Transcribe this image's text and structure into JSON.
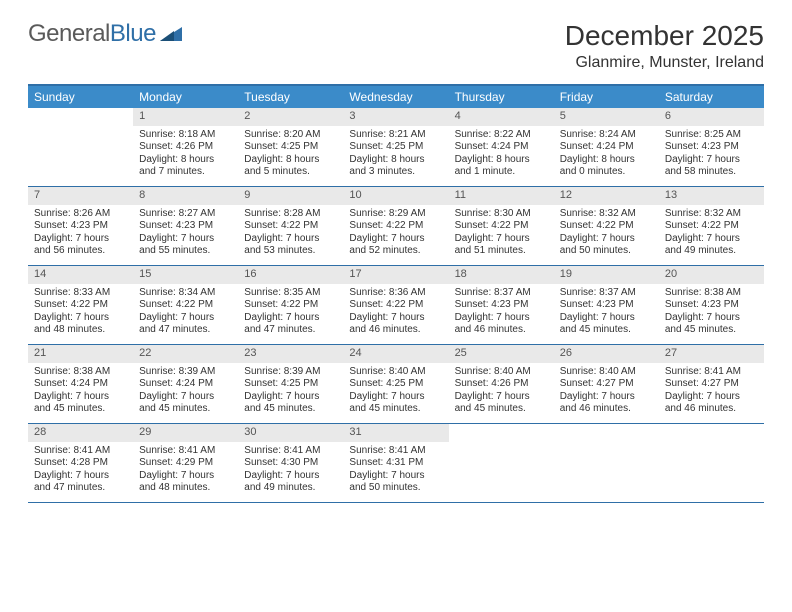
{
  "logo": {
    "part1": "General",
    "part2": "Blue"
  },
  "title": "December 2025",
  "location": "Glanmire, Munster, Ireland",
  "colors": {
    "header_bg": "#3b8bc9",
    "border": "#2f6fa7",
    "daynum_bg": "#e9e9e9",
    "text": "#333333"
  },
  "dayNames": [
    "Sunday",
    "Monday",
    "Tuesday",
    "Wednesday",
    "Thursday",
    "Friday",
    "Saturday"
  ],
  "weeks": [
    [
      {
        "n": "",
        "sr": "",
        "ss": "",
        "dl": ""
      },
      {
        "n": "1",
        "sr": "Sunrise: 8:18 AM",
        "ss": "Sunset: 4:26 PM",
        "dl": "Daylight: 8 hours and 7 minutes."
      },
      {
        "n": "2",
        "sr": "Sunrise: 8:20 AM",
        "ss": "Sunset: 4:25 PM",
        "dl": "Daylight: 8 hours and 5 minutes."
      },
      {
        "n": "3",
        "sr": "Sunrise: 8:21 AM",
        "ss": "Sunset: 4:25 PM",
        "dl": "Daylight: 8 hours and 3 minutes."
      },
      {
        "n": "4",
        "sr": "Sunrise: 8:22 AM",
        "ss": "Sunset: 4:24 PM",
        "dl": "Daylight: 8 hours and 1 minute."
      },
      {
        "n": "5",
        "sr": "Sunrise: 8:24 AM",
        "ss": "Sunset: 4:24 PM",
        "dl": "Daylight: 8 hours and 0 minutes."
      },
      {
        "n": "6",
        "sr": "Sunrise: 8:25 AM",
        "ss": "Sunset: 4:23 PM",
        "dl": "Daylight: 7 hours and 58 minutes."
      }
    ],
    [
      {
        "n": "7",
        "sr": "Sunrise: 8:26 AM",
        "ss": "Sunset: 4:23 PM",
        "dl": "Daylight: 7 hours and 56 minutes."
      },
      {
        "n": "8",
        "sr": "Sunrise: 8:27 AM",
        "ss": "Sunset: 4:23 PM",
        "dl": "Daylight: 7 hours and 55 minutes."
      },
      {
        "n": "9",
        "sr": "Sunrise: 8:28 AM",
        "ss": "Sunset: 4:22 PM",
        "dl": "Daylight: 7 hours and 53 minutes."
      },
      {
        "n": "10",
        "sr": "Sunrise: 8:29 AM",
        "ss": "Sunset: 4:22 PM",
        "dl": "Daylight: 7 hours and 52 minutes."
      },
      {
        "n": "11",
        "sr": "Sunrise: 8:30 AM",
        "ss": "Sunset: 4:22 PM",
        "dl": "Daylight: 7 hours and 51 minutes."
      },
      {
        "n": "12",
        "sr": "Sunrise: 8:32 AM",
        "ss": "Sunset: 4:22 PM",
        "dl": "Daylight: 7 hours and 50 minutes."
      },
      {
        "n": "13",
        "sr": "Sunrise: 8:32 AM",
        "ss": "Sunset: 4:22 PM",
        "dl": "Daylight: 7 hours and 49 minutes."
      }
    ],
    [
      {
        "n": "14",
        "sr": "Sunrise: 8:33 AM",
        "ss": "Sunset: 4:22 PM",
        "dl": "Daylight: 7 hours and 48 minutes."
      },
      {
        "n": "15",
        "sr": "Sunrise: 8:34 AM",
        "ss": "Sunset: 4:22 PM",
        "dl": "Daylight: 7 hours and 47 minutes."
      },
      {
        "n": "16",
        "sr": "Sunrise: 8:35 AM",
        "ss": "Sunset: 4:22 PM",
        "dl": "Daylight: 7 hours and 47 minutes."
      },
      {
        "n": "17",
        "sr": "Sunrise: 8:36 AM",
        "ss": "Sunset: 4:22 PM",
        "dl": "Daylight: 7 hours and 46 minutes."
      },
      {
        "n": "18",
        "sr": "Sunrise: 8:37 AM",
        "ss": "Sunset: 4:23 PM",
        "dl": "Daylight: 7 hours and 46 minutes."
      },
      {
        "n": "19",
        "sr": "Sunrise: 8:37 AM",
        "ss": "Sunset: 4:23 PM",
        "dl": "Daylight: 7 hours and 45 minutes."
      },
      {
        "n": "20",
        "sr": "Sunrise: 8:38 AM",
        "ss": "Sunset: 4:23 PM",
        "dl": "Daylight: 7 hours and 45 minutes."
      }
    ],
    [
      {
        "n": "21",
        "sr": "Sunrise: 8:38 AM",
        "ss": "Sunset: 4:24 PM",
        "dl": "Daylight: 7 hours and 45 minutes."
      },
      {
        "n": "22",
        "sr": "Sunrise: 8:39 AM",
        "ss": "Sunset: 4:24 PM",
        "dl": "Daylight: 7 hours and 45 minutes."
      },
      {
        "n": "23",
        "sr": "Sunrise: 8:39 AM",
        "ss": "Sunset: 4:25 PM",
        "dl": "Daylight: 7 hours and 45 minutes."
      },
      {
        "n": "24",
        "sr": "Sunrise: 8:40 AM",
        "ss": "Sunset: 4:25 PM",
        "dl": "Daylight: 7 hours and 45 minutes."
      },
      {
        "n": "25",
        "sr": "Sunrise: 8:40 AM",
        "ss": "Sunset: 4:26 PM",
        "dl": "Daylight: 7 hours and 45 minutes."
      },
      {
        "n": "26",
        "sr": "Sunrise: 8:40 AM",
        "ss": "Sunset: 4:27 PM",
        "dl": "Daylight: 7 hours and 46 minutes."
      },
      {
        "n": "27",
        "sr": "Sunrise: 8:41 AM",
        "ss": "Sunset: 4:27 PM",
        "dl": "Daylight: 7 hours and 46 minutes."
      }
    ],
    [
      {
        "n": "28",
        "sr": "Sunrise: 8:41 AM",
        "ss": "Sunset: 4:28 PM",
        "dl": "Daylight: 7 hours and 47 minutes."
      },
      {
        "n": "29",
        "sr": "Sunrise: 8:41 AM",
        "ss": "Sunset: 4:29 PM",
        "dl": "Daylight: 7 hours and 48 minutes."
      },
      {
        "n": "30",
        "sr": "Sunrise: 8:41 AM",
        "ss": "Sunset: 4:30 PM",
        "dl": "Daylight: 7 hours and 49 minutes."
      },
      {
        "n": "31",
        "sr": "Sunrise: 8:41 AM",
        "ss": "Sunset: 4:31 PM",
        "dl": "Daylight: 7 hours and 50 minutes."
      },
      {
        "n": "",
        "sr": "",
        "ss": "",
        "dl": ""
      },
      {
        "n": "",
        "sr": "",
        "ss": "",
        "dl": ""
      },
      {
        "n": "",
        "sr": "",
        "ss": "",
        "dl": ""
      }
    ]
  ]
}
